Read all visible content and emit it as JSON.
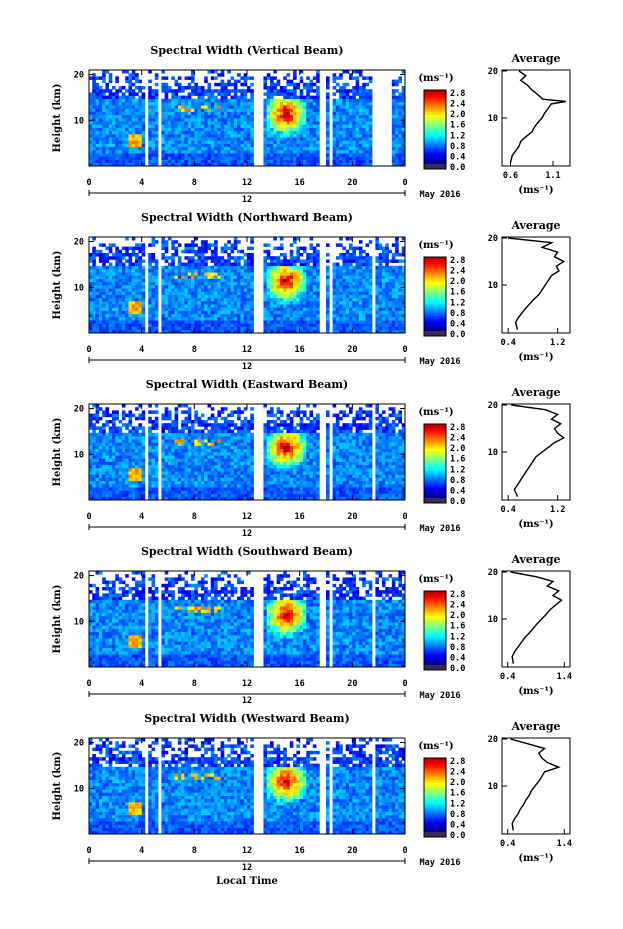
{
  "chart_data": [
    {
      "type": "heatmap",
      "title": "Spectral Width (Vertical Beam)",
      "ylabel": "Height (km)",
      "xticks": [
        "0",
        "4",
        "8",
        "12",
        "16",
        "20",
        "0"
      ],
      "yticks": [
        "10",
        "20"
      ],
      "date_label": "12",
      "month_label": "May 2016",
      "colorbar": {
        "unit": "(ms⁻¹)",
        "ticks": [
          "2.8",
          "2.4",
          "2.0",
          "1.6",
          "1.2",
          "0.8",
          "0.4",
          "0.0"
        ]
      },
      "gaps_hours": [
        [
          4.2,
          4.6
        ],
        [
          5.3,
          5.6
        ],
        [
          12.5,
          13.2
        ],
        [
          17.6,
          17.9
        ],
        [
          18.3,
          18.6
        ],
        [
          21.6,
          23.0
        ]
      ],
      "hot_zone": {
        "hours": [
          13.5,
          16.5
        ],
        "km": [
          6,
          15
        ]
      },
      "profile": {
        "title": "Average",
        "xlabel": "(ms⁻¹)",
        "xticks": [
          "0.6",
          "1.1"
        ],
        "xlim": [
          0.5,
          1.3
        ],
        "yticks": [
          "10",
          "20"
        ],
        "ylim": [
          0,
          20
        ],
        "h": [
          0.5,
          2,
          3,
          4,
          5,
          6,
          7,
          8,
          9,
          10,
          11,
          12,
          13,
          13.5,
          14,
          15,
          16,
          17,
          18,
          19,
          20
        ],
        "v": [
          0.6,
          0.62,
          0.66,
          0.7,
          0.72,
          0.78,
          0.85,
          0.88,
          0.92,
          0.97,
          1.0,
          1.04,
          1.08,
          1.25,
          0.98,
          0.92,
          0.85,
          0.8,
          0.72,
          0.78,
          0.7
        ]
      }
    },
    {
      "type": "heatmap",
      "title": "Spectral Width (Northward Beam)",
      "ylabel": "Height (km)",
      "xticks": [
        "0",
        "4",
        "8",
        "12",
        "16",
        "20",
        "0"
      ],
      "yticks": [
        "10",
        "20"
      ],
      "date_label": "12",
      "month_label": "May 2016",
      "colorbar": {
        "unit": "(ms⁻¹)",
        "ticks": [
          "2.8",
          "2.4",
          "2.0",
          "1.6",
          "1.2",
          "0.8",
          "0.4",
          "0.0"
        ]
      },
      "gaps_hours": [
        [
          4.2,
          4.6
        ],
        [
          5.3,
          5.6
        ],
        [
          12.5,
          13.2
        ],
        [
          17.6,
          17.9
        ],
        [
          18.3,
          18.6
        ],
        [
          21.6,
          21.8
        ]
      ],
      "hot_zone": {
        "hours": [
          13.5,
          16.5
        ],
        "km": [
          6,
          15
        ]
      },
      "profile": {
        "title": "Average",
        "xlabel": "(ms⁻¹)",
        "xticks": [
          "0.4",
          "1.2"
        ],
        "xlim": [
          0.3,
          1.4
        ],
        "yticks": [
          "10",
          "20"
        ],
        "ylim": [
          0,
          20
        ],
        "h": [
          0.5,
          2,
          3,
          4,
          5,
          6,
          7,
          8,
          9,
          10,
          11,
          12,
          13,
          14,
          15,
          16,
          17,
          18,
          19,
          20
        ],
        "v": [
          0.55,
          0.52,
          0.56,
          0.62,
          0.68,
          0.75,
          0.82,
          0.9,
          0.95,
          1.0,
          1.05,
          1.1,
          1.22,
          1.18,
          1.3,
          1.15,
          1.2,
          0.95,
          1.1,
          0.4
        ]
      }
    },
    {
      "type": "heatmap",
      "title": "Spectral Width (Eastward Beam)",
      "ylabel": "Height (km)",
      "xticks": [
        "0",
        "4",
        "8",
        "12",
        "16",
        "20",
        "0"
      ],
      "yticks": [
        "10",
        "20"
      ],
      "date_label": "12",
      "month_label": "May 2016",
      "colorbar": {
        "unit": "(ms⁻¹)",
        "ticks": [
          "2.8",
          "2.4",
          "2.0",
          "1.6",
          "1.2",
          "0.8",
          "0.4",
          "0.0"
        ]
      },
      "gaps_hours": [
        [
          4.2,
          4.6
        ],
        [
          5.3,
          5.6
        ],
        [
          12.5,
          13.2
        ],
        [
          17.6,
          17.9
        ],
        [
          18.3,
          18.6
        ],
        [
          21.6,
          21.8
        ]
      ],
      "hot_zone": {
        "hours": [
          13.5,
          16.5
        ],
        "km": [
          6,
          15
        ]
      },
      "profile": {
        "title": "Average",
        "xlabel": "(ms⁻¹)",
        "xticks": [
          "0.4",
          "1.2"
        ],
        "xlim": [
          0.3,
          1.4
        ],
        "yticks": [
          "10",
          "20"
        ],
        "ylim": [
          0,
          20
        ],
        "h": [
          0.5,
          2,
          3,
          4,
          5,
          6,
          7,
          8,
          9,
          10,
          11,
          12,
          13,
          14,
          15,
          16,
          17,
          18,
          19,
          20
        ],
        "v": [
          0.55,
          0.5,
          0.55,
          0.6,
          0.65,
          0.7,
          0.75,
          0.8,
          0.85,
          0.95,
          1.05,
          1.15,
          1.3,
          1.2,
          1.15,
          1.25,
          1.1,
          1.2,
          1.0,
          0.45
        ]
      }
    },
    {
      "type": "heatmap",
      "title": "Spectral Width (Southward Beam)",
      "ylabel": "Height (km)",
      "xticks": [
        "0",
        "4",
        "8",
        "12",
        "16",
        "20",
        "0"
      ],
      "yticks": [
        "10",
        "20"
      ],
      "date_label": "12",
      "month_label": "May 2016",
      "colorbar": {
        "unit": "(ms⁻¹)",
        "ticks": [
          "2.8",
          "2.4",
          "2.0",
          "1.6",
          "1.2",
          "0.8",
          "0.4",
          "0.0"
        ]
      },
      "gaps_hours": [
        [
          4.2,
          4.6
        ],
        [
          5.3,
          5.6
        ],
        [
          12.5,
          13.2
        ],
        [
          17.6,
          17.9
        ],
        [
          18.3,
          18.6
        ],
        [
          21.6,
          21.8
        ]
      ],
      "hot_zone": {
        "hours": [
          13.5,
          16.5
        ],
        "km": [
          6,
          15
        ]
      },
      "profile": {
        "title": "Average",
        "xlabel": "(ms⁻¹)",
        "xticks": [
          "0.4",
          "1.4"
        ],
        "xlim": [
          0.3,
          1.5
        ],
        "yticks": [
          "10",
          "20"
        ],
        "ylim": [
          0,
          20
        ],
        "h": [
          0.5,
          2,
          3,
          4,
          5,
          6,
          7,
          8,
          9,
          10,
          11,
          12,
          13,
          14,
          15,
          16,
          17,
          18,
          19,
          20
        ],
        "v": [
          0.5,
          0.48,
          0.52,
          0.58,
          0.64,
          0.7,
          0.78,
          0.85,
          0.92,
          1.0,
          1.08,
          1.15,
          1.25,
          1.35,
          1.2,
          1.3,
          1.1,
          1.2,
          0.9,
          0.45
        ]
      }
    },
    {
      "type": "heatmap",
      "title": "Spectral Width (Westward Beam)",
      "ylabel": "Height (km)",
      "xticks": [
        "0",
        "4",
        "8",
        "12",
        "16",
        "20",
        "0"
      ],
      "yticks": [
        "10",
        "20"
      ],
      "date_label": "12",
      "month_label": "May 2016",
      "xlabel": "Local Time",
      "colorbar": {
        "unit": "(ms⁻¹)",
        "ticks": [
          "2.8",
          "2.4",
          "2.0",
          "1.6",
          "1.2",
          "0.8",
          "0.4",
          "0.0"
        ]
      },
      "gaps_hours": [
        [
          4.2,
          4.6
        ],
        [
          5.3,
          5.6
        ],
        [
          12.5,
          13.2
        ],
        [
          17.6,
          17.9
        ],
        [
          18.3,
          18.6
        ],
        [
          21.6,
          21.8
        ]
      ],
      "hot_zone": {
        "hours": [
          13.5,
          16.5
        ],
        "km": [
          6,
          15
        ]
      },
      "profile": {
        "title": "Average",
        "xlabel": "(ms⁻¹)",
        "xticks": [
          "0.4",
          "1.4"
        ],
        "xlim": [
          0.3,
          1.5
        ],
        "yticks": [
          "10",
          "20"
        ],
        "ylim": [
          0,
          20
        ],
        "h": [
          0.5,
          2,
          3,
          4,
          5,
          6,
          7,
          8,
          9,
          10,
          11,
          12,
          13,
          14,
          15,
          16,
          17,
          18,
          19,
          20
        ],
        "v": [
          0.5,
          0.48,
          0.52,
          0.58,
          0.62,
          0.68,
          0.72,
          0.78,
          0.82,
          0.88,
          0.95,
          1.0,
          1.05,
          1.3,
          1.1,
          1.0,
          0.95,
          1.05,
          0.75,
          0.45
        ]
      }
    }
  ]
}
